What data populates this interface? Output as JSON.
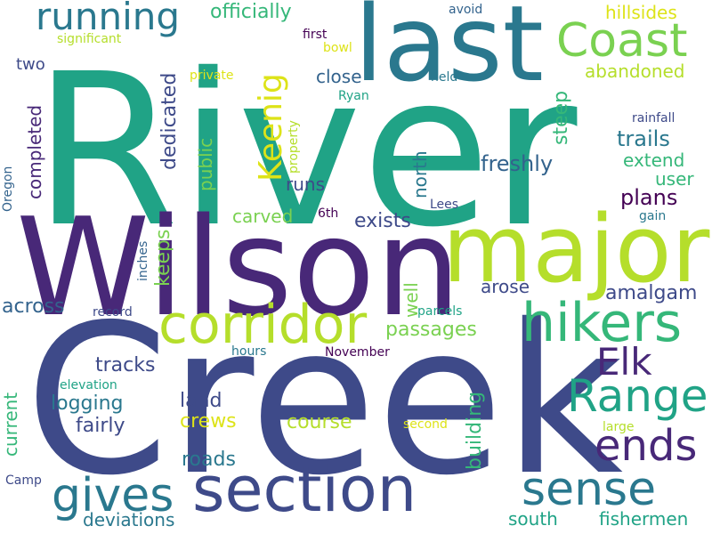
{
  "palette": {
    "teal": "#20a386",
    "green": "#7ad151",
    "lime": "#b5de2b",
    "yellow": "#dde318",
    "mint": "#35b779",
    "steel": "#2a788e",
    "blue": "#33638d",
    "indigo": "#3e4a89",
    "purple": "#482878",
    "deep": "#440154"
  },
  "words": {
    "river": "River",
    "creek": "Creek",
    "wilson": "Wilson",
    "last": "last",
    "major": "major",
    "section": "section",
    "corridor": "corridor",
    "hikers": "hikers",
    "coast": "Coast",
    "range": "Range",
    "running": "running",
    "gives": "gives",
    "sense": "sense",
    "elk": "Elk",
    "ends": "ends",
    "keenig": "Keenig",
    "officially": "officially",
    "hillsides": "hillsides",
    "abandoned": "abandoned",
    "avoid": "avoid",
    "significant": "significant",
    "first": "first",
    "bowl": "bowl",
    "two": "two",
    "private": "private",
    "close": "close",
    "held": "held",
    "ryan": "Ryan",
    "completed": "completed",
    "dedicated": "dedicated",
    "steep": "steep",
    "rainfall": "rainfall",
    "trails": "trails",
    "north": "north",
    "property": "property",
    "freshly": "freshly",
    "extend": "extend",
    "public": "public",
    "runs": "runs",
    "user": "user",
    "plans": "plans",
    "oregon": "Oregon",
    "carved": "carved",
    "sixth": "6th",
    "lees": "Lees",
    "gain": "gain",
    "exists": "exists",
    "keeps": "keeps",
    "inches": "inches",
    "well": "well",
    "arose": "arose",
    "amalgam": "amalgam",
    "across": "across",
    "record": "record",
    "parcels": "parcels",
    "passages": "passages",
    "hours": "hours",
    "november": "November",
    "current": "current",
    "tracks": "tracks",
    "elevation": "elevation",
    "logging": "logging",
    "land": "land",
    "building": "building",
    "crews": "crews",
    "course": "course",
    "fairly": "fairly",
    "second": "second",
    "large": "large",
    "roads": "roads",
    "camp": "Camp",
    "deviations": "deviations",
    "south": "south",
    "fishermen": "fishermen"
  }
}
